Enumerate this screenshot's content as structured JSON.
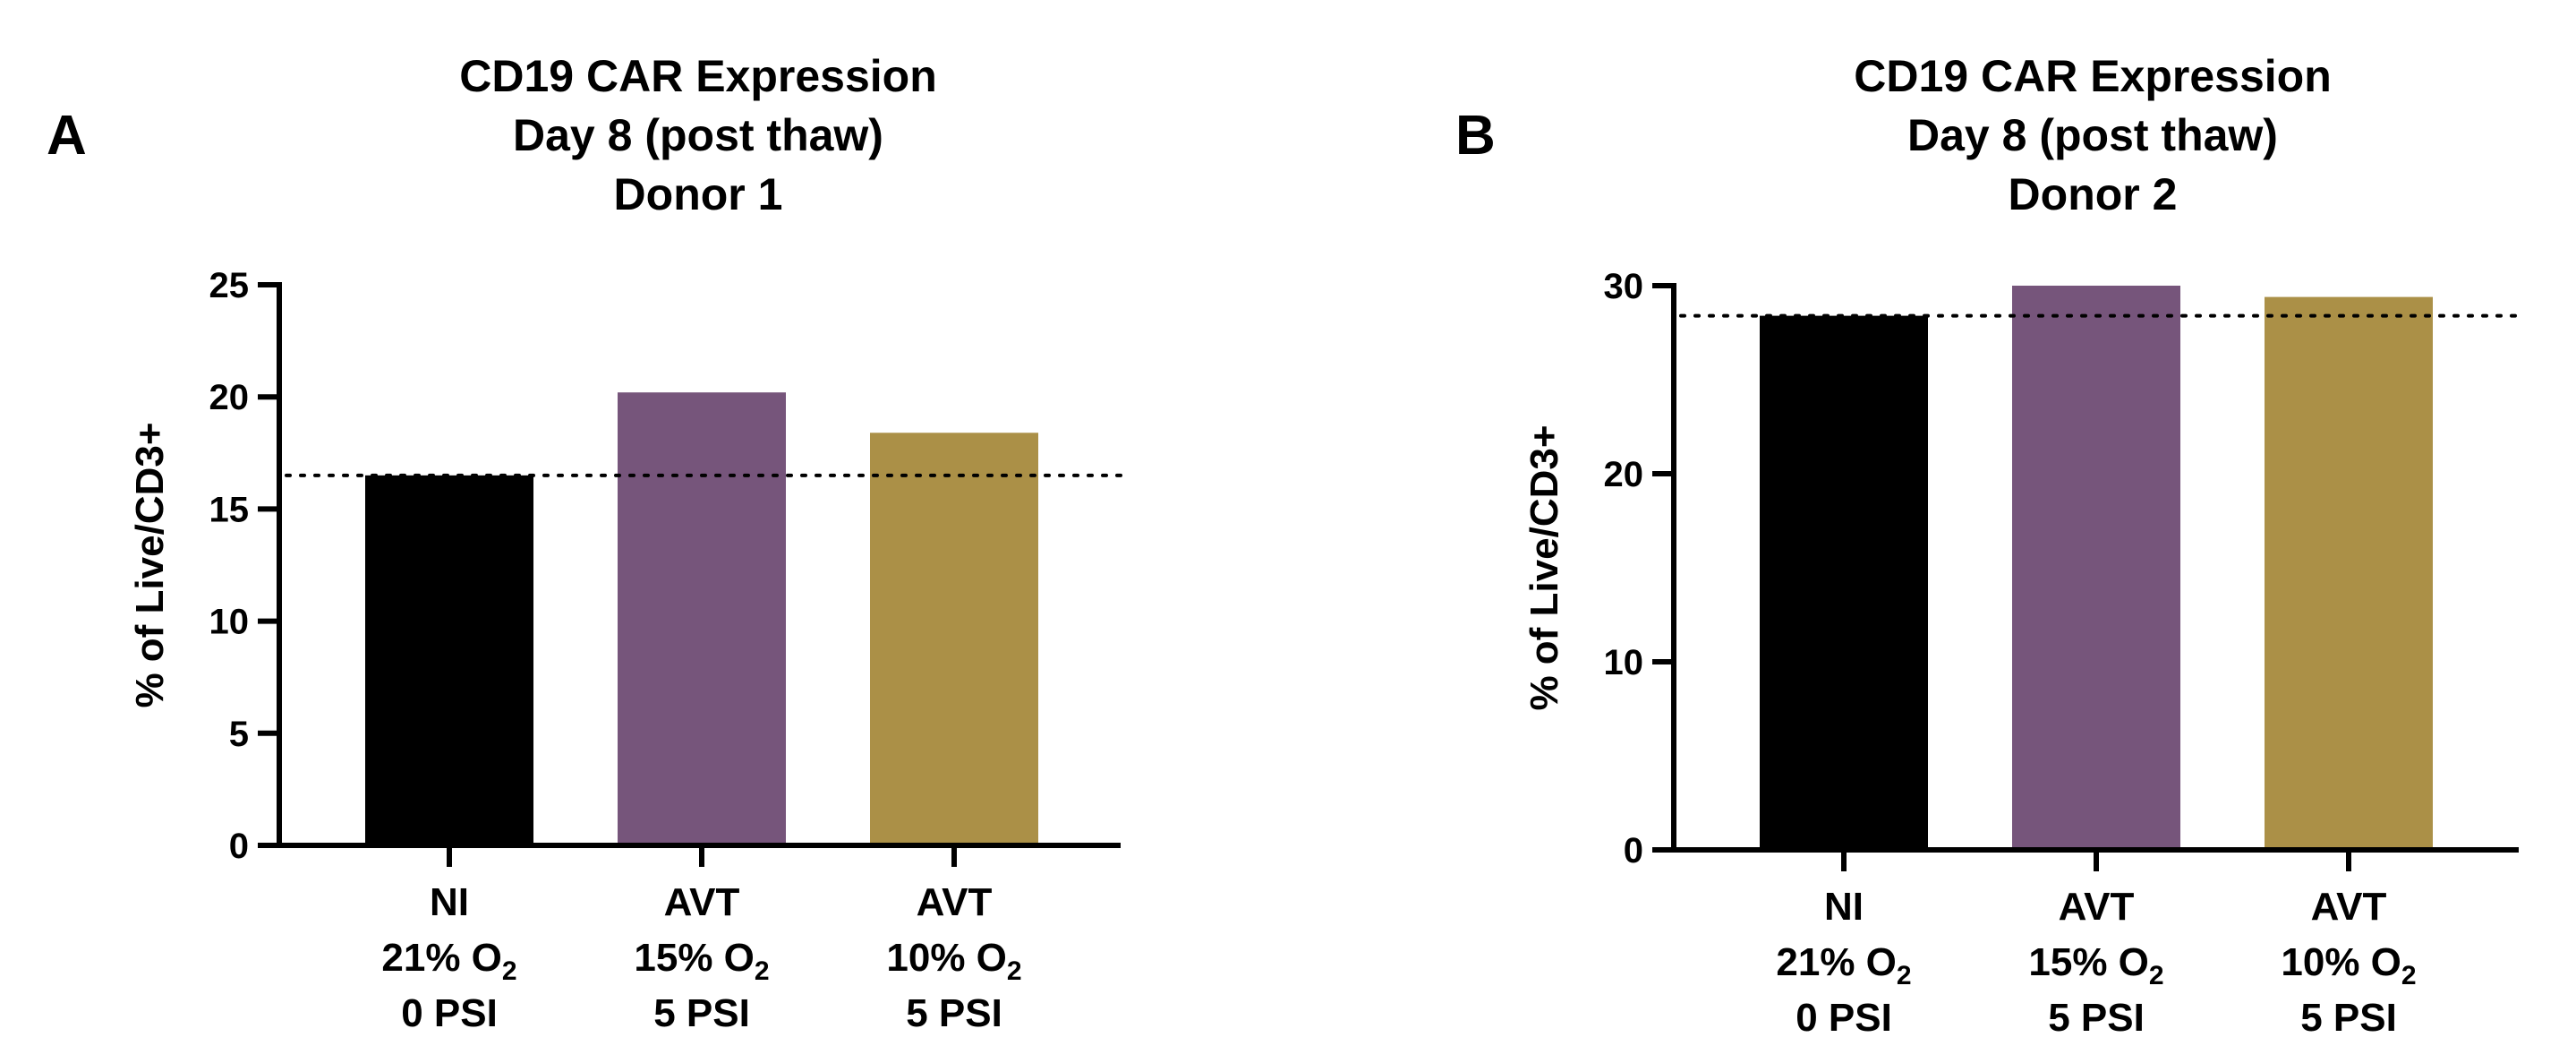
{
  "chart_data": [
    {
      "panel": "A",
      "type": "bar",
      "title": [
        "CD19 CAR Expression",
        "Day 8 (post thaw)",
        "Donor 1"
      ],
      "ylabel": "% of Live/CD3+",
      "xlabel": "",
      "ylim": [
        0,
        25
      ],
      "yticks": [
        0,
        5,
        10,
        15,
        20,
        25
      ],
      "reference_line": {
        "style": "dotted",
        "value": 16.5
      },
      "grid": false,
      "categories": [
        [
          "NI",
          "21% O2",
          "0 PSI"
        ],
        [
          "AVT",
          "15% O2",
          "5 PSI"
        ],
        [
          "AVT",
          "10% O2",
          "5 PSI"
        ]
      ],
      "values": [
        16.5,
        20.2,
        18.4
      ],
      "colors": [
        "#000000",
        "#76557b",
        "#ab9047"
      ]
    },
    {
      "panel": "B",
      "type": "bar",
      "title": [
        "CD19 CAR Expression",
        "Day 8 (post thaw)",
        "Donor 2"
      ],
      "ylabel": "% of Live/CD3+",
      "xlabel": "",
      "ylim": [
        0,
        30
      ],
      "yticks": [
        0,
        10,
        20,
        30
      ],
      "reference_line": {
        "style": "dotted",
        "value": 28.4
      },
      "grid": false,
      "categories": [
        [
          "NI",
          "21% O2",
          "0 PSI"
        ],
        [
          "AVT",
          "15% O2",
          "5 PSI"
        ],
        [
          "AVT",
          "10% O2",
          "5 PSI"
        ]
      ],
      "values": [
        28.4,
        30.0,
        29.4
      ],
      "colors": [
        "#000000",
        "#76557b",
        "#ab9047"
      ]
    }
  ]
}
